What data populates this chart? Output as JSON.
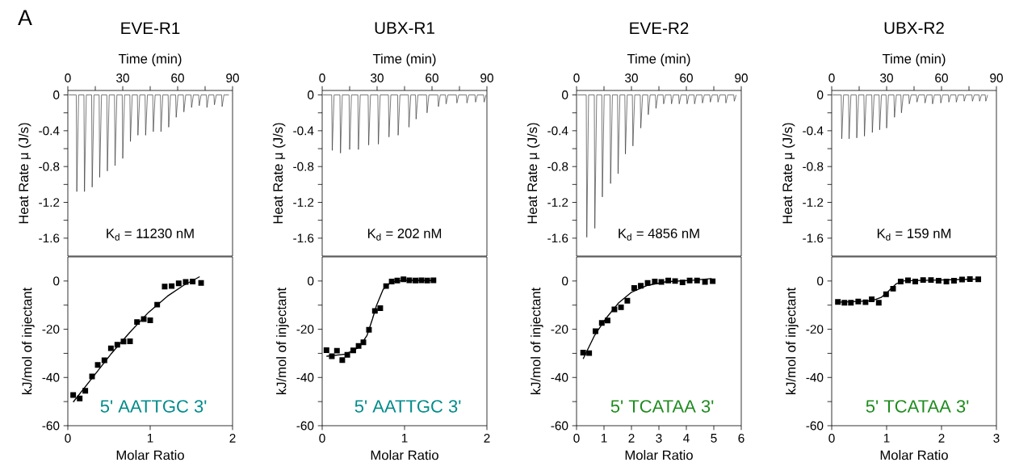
{
  "chart_data": [
    {
      "type": "line",
      "title": "EVE-R1",
      "xlabel": "Time (min)",
      "ylabel": "Heat Rate μ (J/s)",
      "annotations": [
        "A",
        "K$_{d}$ = 11230 nM"
      ],
      "xlim": [
        0,
        90
      ],
      "ylim": [
        -1.8,
        0.05
      ],
      "xticks": [
        0,
        {
          "value": 15,
          "label": null
        },
        30,
        {
          "value": 45,
          "label": null
        },
        60,
        {
          "value": 75,
          "label": null
        },
        90
      ],
      "yticks": [
        -1.6,
        {
          "value": -1.4,
          "label": null
        },
        -1.2,
        {
          "value": -1.0,
          "label": null
        },
        -0.8,
        {
          "value": -0.6,
          "label": null
        },
        -0.4,
        {
          "value": -0.2,
          "label": null
        },
        0
      ],
      "marker": "none",
      "series": [
        {
          "color": "#222222",
          "x": [
            0.5,
            4.6,
            4.9,
            5.9,
            8.8,
            9.1,
            10.1,
            13.0,
            13.3,
            14.3,
            17.1,
            17.4,
            18.4,
            21.3,
            21.6,
            22.6,
            25.5,
            25.8,
            26.8,
            29.7,
            30.0,
            31.0,
            33.9,
            34.2,
            35.2,
            38.0,
            38.3,
            39.3,
            42.2,
            42.5,
            43.5,
            46.4,
            46.7,
            47.7,
            50.6,
            50.9,
            51.9,
            54.8,
            55.1,
            56.1,
            58.9,
            59.2,
            60.2,
            63.1,
            63.4,
            64.4,
            67.3,
            67.6,
            68.6,
            71.5,
            71.8,
            72.8,
            75.7,
            76.0,
            77.0,
            79.8,
            80.1,
            81.1,
            84.0,
            84.3,
            85.3,
            88.0
          ],
          "values": [
            0,
            0,
            -1.08,
            0,
            0,
            -1.08,
            0,
            0,
            -1.03,
            0,
            0,
            -0.92,
            0,
            0,
            -0.85,
            0,
            0,
            -0.79,
            0,
            0,
            -0.71,
            0,
            0,
            -0.52,
            0,
            0,
            -0.45,
            0,
            0,
            -0.45,
            0,
            0,
            -0.41,
            0,
            0,
            -0.41,
            0,
            0,
            -0.36,
            0,
            0,
            -0.25,
            0,
            0,
            -0.19,
            0,
            0,
            -0.14,
            0,
            0,
            -0.12,
            0,
            0,
            -0.14,
            0,
            0,
            -0.11,
            0,
            0,
            -0.13,
            0,
            0
          ]
        }
      ]
    },
    {
      "type": "line",
      "title": "UBX-R1",
      "xlabel": "Time (min)",
      "ylabel": "Heat Rate μ (J/s)",
      "annotations": [
        "K$_{d}$ = 202 nM"
      ],
      "xlim": [
        0,
        90
      ],
      "ylim": [
        -1.8,
        0.05
      ],
      "xticks": [
        0,
        {
          "value": 15,
          "label": null
        },
        30,
        {
          "value": 45,
          "label": null
        },
        60,
        {
          "value": 75,
          "label": null
        },
        90
      ],
      "yticks": [
        -1.6,
        {
          "value": -1.4,
          "label": null
        },
        -1.2,
        {
          "value": -1.0,
          "label": null
        },
        -0.8,
        {
          "value": -0.6,
          "label": null
        },
        -0.4,
        {
          "value": -0.2,
          "label": null
        },
        0
      ],
      "marker": "none",
      "series": [
        {
          "color": "#222222",
          "x": [
            0.5,
            5.2,
            5.5,
            6.5,
            9.7,
            10.0,
            11.0,
            14.7,
            15.0,
            16.0,
            19.5,
            19.8,
            20.8,
            25.1,
            25.4,
            26.4,
            30.4,
            30.7,
            31.7,
            36.2,
            36.5,
            37.5,
            41.2,
            41.5,
            42.5,
            47.1,
            47.4,
            48.4,
            51.0,
            51.3,
            52.3,
            57.0,
            57.3,
            58.3,
            63.2,
            63.5,
            64.5,
            67.4,
            67.7,
            68.7,
            73.3,
            73.6,
            74.6,
            78.8,
            79.1,
            80.1,
            83.5,
            83.8,
            84.8,
            88.2,
            88.5,
            89.5
          ],
          "values": [
            0,
            0,
            -0.62,
            0,
            0,
            -0.65,
            0,
            0,
            -0.61,
            0,
            0,
            -0.61,
            0,
            0,
            -0.56,
            0,
            0,
            -0.55,
            0,
            0,
            -0.47,
            0,
            0,
            -0.45,
            0,
            0,
            -0.36,
            0,
            0,
            -0.27,
            0,
            0,
            -0.2,
            0,
            0,
            -0.13,
            0,
            0,
            -0.1,
            0,
            0,
            -0.09,
            0,
            0,
            -0.09,
            0,
            0,
            -0.08,
            0,
            0,
            -0.08,
            0
          ]
        }
      ]
    },
    {
      "type": "line",
      "title": "EVE-R2",
      "xlabel": "Time (min)",
      "ylabel": "Heat Rate μ (J/s)",
      "annotations": [
        "K$_{d}$ = 4856 nM"
      ],
      "xlim": [
        0,
        90
      ],
      "ylim": [
        -1.8,
        0.05
      ],
      "xticks": [
        0,
        {
          "value": 15,
          "label": null
        },
        30,
        {
          "value": 45,
          "label": null
        },
        60,
        {
          "value": 75,
          "label": null
        },
        90
      ],
      "yticks": [
        -1.6,
        {
          "value": -1.4,
          "label": null
        },
        -1.2,
        {
          "value": -1.0,
          "label": null
        },
        -0.8,
        {
          "value": -0.6,
          "label": null
        },
        -0.4,
        {
          "value": -0.2,
          "label": null
        },
        0
      ],
      "marker": "none",
      "series": [
        {
          "color": "#222222",
          "x": [
            0.5,
            5.3,
            5.6,
            6.6,
            9.7,
            10.0,
            11.0,
            13.8,
            14.1,
            15.1,
            18.3,
            18.6,
            19.6,
            22.4,
            22.7,
            23.7,
            26.4,
            26.7,
            27.7,
            30.5,
            30.8,
            31.8,
            34.8,
            35.1,
            36.1,
            38.9,
            39.2,
            40.2,
            43.1,
            43.4,
            44.4,
            47.3,
            47.6,
            48.6,
            51.6,
            51.9,
            52.9,
            55.8,
            56.1,
            57.1,
            60.1,
            60.4,
            61.4,
            64.2,
            64.5,
            65.5,
            68.5,
            68.8,
            69.8,
            72.8,
            73.1,
            74.1,
            77.0,
            77.3,
            78.3,
            81.3,
            81.6,
            82.6,
            85.9,
            86.2,
            87.2
          ],
          "values": [
            0,
            0,
            -1.59,
            0,
            0,
            -1.49,
            0,
            0,
            -1.14,
            0,
            0,
            -0.99,
            0,
            0,
            -0.88,
            0,
            0,
            -0.66,
            0,
            0,
            -0.57,
            0,
            0,
            -0.37,
            0,
            0,
            -0.22,
            0,
            0,
            -0.15,
            0,
            0,
            -0.1,
            0,
            0,
            -0.1,
            0,
            0,
            -0.1,
            0,
            0,
            -0.1,
            0,
            0,
            -0.1,
            0,
            0,
            -0.09,
            0,
            0,
            -0.08,
            0,
            0,
            -0.08,
            0,
            0,
            -0.09,
            0,
            0,
            -0.07,
            0
          ]
        }
      ]
    },
    {
      "type": "line",
      "title": "UBX-R2",
      "xlabel": "Time (min)",
      "ylabel": "Heat Rate μ (J/s)",
      "annotations": [
        "K$_{d}$ = 159 nM"
      ],
      "xlim": [
        0,
        90
      ],
      "ylim": [
        -1.8,
        0.05
      ],
      "xticks": [
        0,
        {
          "value": 15,
          "label": null
        },
        30,
        {
          "value": 45,
          "label": null
        },
        60,
        {
          "value": 75,
          "label": null
        },
        90
      ],
      "yticks": [
        -1.6,
        {
          "value": -1.4,
          "label": null
        },
        -1.2,
        {
          "value": -1.0,
          "label": null
        },
        -0.8,
        {
          "value": -0.6,
          "label": null
        },
        -0.4,
        {
          "value": -0.2,
          "label": null
        },
        0
      ],
      "marker": "none",
      "series": [
        {
          "color": "#222222",
          "x": [
            0.5,
            5.2,
            5.5,
            6.5,
            9.2,
            9.5,
            10.5,
            13.4,
            13.7,
            14.7,
            17.6,
            17.9,
            18.9,
            21.9,
            22.2,
            23.2,
            25.9,
            26.2,
            27.2,
            29.7,
            30.0,
            31.0,
            34.0,
            34.3,
            35.3,
            37.8,
            38.1,
            39.1,
            42.1,
            42.4,
            43.4,
            46.3,
            46.6,
            47.6,
            50.7,
            51.0,
            52.0,
            54.8,
            55.1,
            56.1,
            59.3,
            59.6,
            60.6,
            63.7,
            64.0,
            65.0,
            67.8,
            68.1,
            69.1,
            72.1,
            72.4,
            73.4,
            76.6,
            76.9,
            77.9,
            80.5,
            80.8,
            81.8,
            83.9,
            84.2,
            85.2
          ],
          "values": [
            0,
            0,
            -0.49,
            0,
            0,
            -0.49,
            0,
            0,
            -0.48,
            0,
            0,
            -0.46,
            0,
            0,
            -0.42,
            0,
            0,
            -0.39,
            0,
            0,
            -0.37,
            0,
            0,
            -0.25,
            0,
            0,
            -0.2,
            0,
            0,
            -0.1,
            0,
            0,
            -0.08,
            0,
            0,
            -0.09,
            0,
            0,
            -0.1,
            0,
            0,
            -0.09,
            0,
            0,
            -0.08,
            0,
            0,
            -0.08,
            0,
            0,
            -0.07,
            0,
            0,
            -0.07,
            0,
            0,
            -0.07,
            0,
            0,
            -0.07,
            0
          ]
        }
      ]
    },
    {
      "type": "scatter",
      "xlabel": "Molar Ratio",
      "ylabel": "kJ/mol of injectant",
      "annotations": [
        "5' AATTGC 3'"
      ],
      "xlim": [
        0,
        2
      ],
      "ylim": [
        -60,
        10
      ],
      "xticks": [
        0,
        1,
        2
      ],
      "yticks": [
        -60,
        {
          "value": -50,
          "label": null
        },
        -40,
        {
          "value": -30,
          "label": null
        },
        -20,
        {
          "value": -10,
          "label": null
        },
        0
      ],
      "marker": "square",
      "series": [
        {
          "color": "#000000",
          "x": [
            0.065,
            0.144,
            0.212,
            0.294,
            0.363,
            0.444,
            0.523,
            0.601,
            0.676,
            0.755,
            0.84,
            0.922,
            1.0,
            1.085,
            1.176,
            1.261,
            1.346,
            1.431,
            1.516,
            1.618
          ],
          "values": [
            -47.3,
            -48.7,
            -45.5,
            -39.6,
            -34.8,
            -32.9,
            -27.9,
            -26.4,
            -25.1,
            -25.0,
            -17.0,
            -15.8,
            -16.3,
            -9.8,
            -2.3,
            -2.1,
            -1.0,
            -0.4,
            -0.2,
            -0.8
          ]
        },
        {
          "type": "line",
          "marker": "none",
          "color": "#000000",
          "x": [
            0.065,
            0.294,
            0.523,
            0.752,
            0.98,
            1.209,
            1.405,
            1.601
          ],
          "values": [
            -50.2,
            -40.3,
            -30.3,
            -21.3,
            -13.0,
            -6.3,
            -1.8,
            1.8
          ]
        }
      ]
    },
    {
      "type": "scatter",
      "xlabel": "Molar Ratio",
      "ylabel": "kJ/mol of injectant",
      "annotations": [
        "5' AATTGC 3'"
      ],
      "xlim": [
        0,
        2
      ],
      "ylim": [
        -60,
        10
      ],
      "xticks": [
        0,
        1,
        2
      ],
      "yticks": [
        -60,
        {
          "value": -50,
          "label": null
        },
        -40,
        {
          "value": -30,
          "label": null
        },
        -20,
        {
          "value": -10,
          "label": null
        },
        0
      ],
      "marker": "square",
      "series": [
        {
          "color": "#000000",
          "x": [
            0.052,
            0.117,
            0.179,
            0.244,
            0.305,
            0.377,
            0.442,
            0.5,
            0.568,
            0.64,
            0.705,
            0.776,
            0.844,
            0.912,
            0.987,
            1.058,
            1.133,
            1.205,
            1.276,
            1.351
          ],
          "values": [
            -28.7,
            -31.2,
            -28.9,
            -32.8,
            -30.6,
            -28.8,
            -26.9,
            -25.4,
            -20.2,
            -12.4,
            -11.3,
            -2.1,
            -0.2,
            0.2,
            0.7,
            0.3,
            0.2,
            0.3,
            0.2,
            0.3
          ]
        },
        {
          "type": "line",
          "marker": "none",
          "color": "#000000",
          "x": [
            0.052,
            0.286,
            0.448,
            0.545,
            0.61,
            0.659,
            0.74,
            0.838,
            1.0,
            1.357
          ],
          "values": [
            -31.2,
            -30.3,
            -27.5,
            -22.5,
            -15.8,
            -10.2,
            -3.5,
            -0.4,
            0.3,
            0.2
          ]
        }
      ]
    },
    {
      "type": "scatter",
      "xlabel": "Molar Ratio",
      "ylabel": "kJ/mol of injectant",
      "annotations": [
        "5' TCATAA 3'"
      ],
      "xlim": [
        0,
        6
      ],
      "ylim": [
        -60,
        10
      ],
      "xticks": [
        0,
        1,
        2,
        3,
        4,
        5,
        6
      ],
      "yticks": [
        -60,
        {
          "value": -50,
          "label": null
        },
        -40,
        {
          "value": -30,
          "label": null
        },
        -20,
        {
          "value": -10,
          "label": null
        },
        0
      ],
      "marker": "square",
      "series": [
        {
          "color": "#000000",
          "x": [
            0.24,
            0.46,
            0.69,
            0.92,
            1.13,
            1.38,
            1.62,
            1.85,
            2.1,
            2.34,
            2.59,
            2.85,
            3.09,
            3.34,
            3.59,
            3.86,
            4.12,
            4.39,
            4.68,
            4.96
          ],
          "values": [
            -29.7,
            -29.9,
            -20.8,
            -17.4,
            -16.4,
            -11.8,
            -10.9,
            -8.2,
            -2.9,
            -2.0,
            -0.8,
            -0.2,
            -0.4,
            0.2,
            0.0,
            -0.6,
            0.2,
            0.2,
            -0.4,
            -0.1
          ]
        },
        {
          "type": "line",
          "marker": "none",
          "color": "#000000",
          "x": [
            0.24,
            0.66,
            1.05,
            1.53,
            2.01,
            2.59,
            3.27,
            4.24,
            4.92
          ],
          "values": [
            -32.3,
            -22.5,
            -15.8,
            -9.1,
            -4.6,
            -1.8,
            -0.3,
            0.3,
            1.0
          ]
        }
      ]
    },
    {
      "type": "scatter",
      "xlabel": "Molar Ratio",
      "ylabel": "kJ/mol of injectant",
      "annotations": [
        "5' TCATAA 3'"
      ],
      "xlim": [
        0,
        3
      ],
      "ylim": [
        -60,
        10
      ],
      "xticks": [
        0,
        1,
        2,
        3
      ],
      "yticks": [
        -60,
        {
          "value": -50,
          "label": null
        },
        -40,
        {
          "value": -30,
          "label": null
        },
        -20,
        {
          "value": -10,
          "label": null
        },
        0
      ],
      "marker": "square",
      "series": [
        {
          "color": "#000000",
          "x": [
            0.113,
            0.232,
            0.35,
            0.483,
            0.616,
            0.729,
            0.857,
            0.99,
            1.118,
            1.256,
            1.389,
            1.522,
            1.665,
            1.808,
            1.946,
            2.089,
            2.227,
            2.374,
            2.517,
            2.67
          ],
          "values": [
            -8.7,
            -9.0,
            -9.0,
            -8.5,
            -8.8,
            -7.6,
            -9.0,
            -5.5,
            -3.2,
            -0.2,
            0.3,
            -0.2,
            0.4,
            0.4,
            0.1,
            -0.2,
            0.1,
            0.6,
            0.8,
            0.7
          ]
        },
        {
          "type": "line",
          "marker": "none",
          "color": "#000000",
          "x": [
            0.113,
            0.729,
            0.901,
            1.025,
            1.172,
            1.32,
            1.813,
            2.67
          ],
          "values": [
            -8.8,
            -8.2,
            -6.8,
            -4.4,
            -1.2,
            0.1,
            0.3,
            0.8
          ]
        }
      ]
    }
  ]
}
